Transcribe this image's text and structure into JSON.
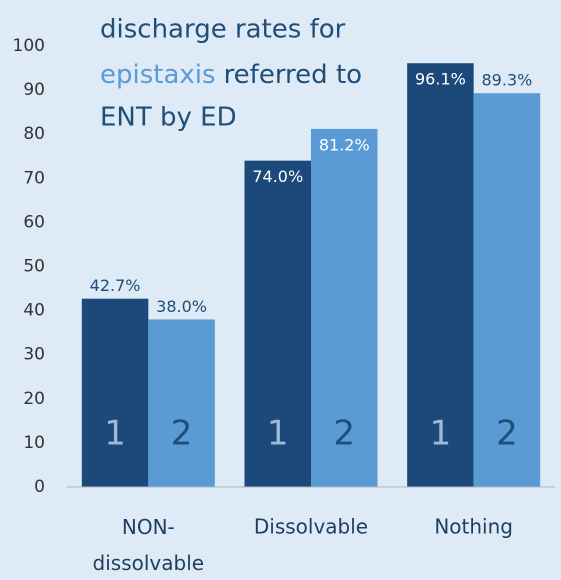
{
  "chart_data": {
    "type": "bar",
    "title": [
      "discharge rates for",
      "epistaxis",
      "referred to",
      "ENT by ED"
    ],
    "categories": [
      "NON-dissolvable",
      "Dissolvable",
      "Nothing"
    ],
    "series": [
      {
        "name": "1",
        "color": "#1b4a7a",
        "values": [
          42.7,
          74.0,
          96.1
        ],
        "value_labels": [
          "42.7%",
          "74.0%",
          "96.1%"
        ]
      },
      {
        "name": "2",
        "color": "#5b9bd5",
        "values": [
          38.0,
          81.2,
          89.3
        ],
        "value_labels": [
          "38.0%",
          "81.2%",
          "89.3%"
        ]
      }
    ],
    "ylim": [
      0,
      100
    ],
    "yticks": [
      0,
      10,
      20,
      30,
      40,
      50,
      60,
      70,
      80,
      90,
      100
    ],
    "grid": false
  }
}
